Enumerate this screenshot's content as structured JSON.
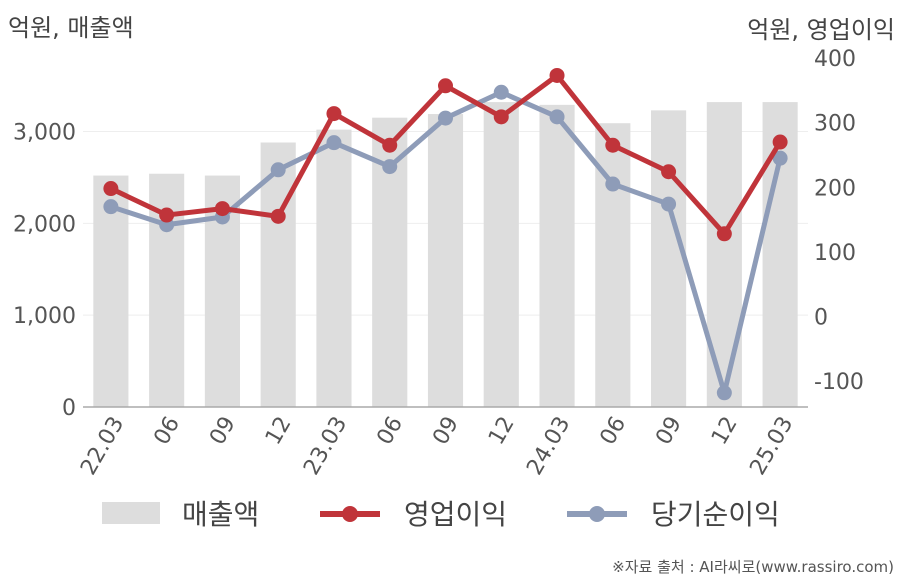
{
  "chart_data": {
    "type": "bar",
    "categories": [
      "22.03",
      "06",
      "09",
      "12",
      "23.03",
      "06",
      "09",
      "12",
      "24.03",
      "06",
      "09",
      "12",
      "25.03"
    ],
    "left_axis": {
      "unit_label": "억원, 매출액",
      "ticks": [
        {
          "value": 0,
          "label": "0"
        },
        {
          "value": 1000,
          "label": "1,000"
        },
        {
          "value": 2000,
          "label": "2,000"
        },
        {
          "value": 3000,
          "label": "3,000"
        }
      ],
      "ylim": [
        0,
        3800
      ]
    },
    "right_axis": {
      "unit_label": "억원, 영업이익",
      "ticks": [
        {
          "value": -100,
          "label": "-100"
        },
        {
          "value": 0,
          "label": "0"
        },
        {
          "value": 100,
          "label": "100"
        },
        {
          "value": 200,
          "label": "200"
        },
        {
          "value": 300,
          "label": "300"
        },
        {
          "value": 400,
          "label": "400"
        }
      ],
      "ylim": [
        -140,
        400
      ]
    },
    "series": [
      {
        "name": "매출액",
        "type": "bar",
        "axis": "left",
        "color": "#dddddd",
        "values": [
          2520,
          2540,
          2520,
          2880,
          3020,
          3150,
          3190,
          3320,
          3290,
          3090,
          3230,
          3320,
          3320
        ]
      },
      {
        "name": "영업이익",
        "type": "line",
        "axis": "right",
        "color": "#c0343a",
        "values": [
          198,
          157,
          167,
          155,
          314,
          265,
          357,
          309,
          373,
          265,
          224,
          128,
          270
        ]
      },
      {
        "name": "당기순이익",
        "type": "line",
        "axis": "right",
        "color": "#8e9cb8",
        "values": [
          170,
          142,
          154,
          227,
          269,
          232,
          307,
          347,
          309,
          205,
          174,
          -118,
          245
        ]
      }
    ],
    "legend_position": "bottom",
    "grid": true
  },
  "source_note": "※자료 출처 : AI라씨로(www.rassiro.com)"
}
